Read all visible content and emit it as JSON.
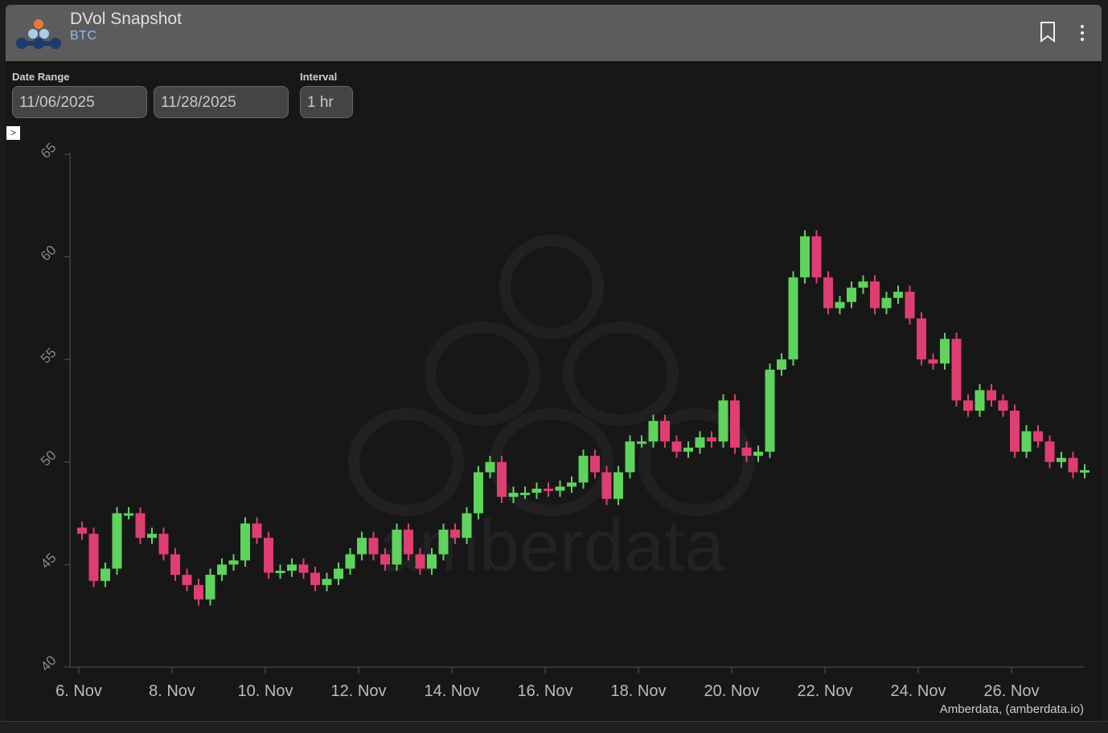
{
  "header": {
    "title": "DVol Snapshot",
    "subtitle": "BTC",
    "bookmark_icon": "bookmark-icon",
    "menu_icon": "kebab-menu-icon"
  },
  "controls": {
    "date_range_label": "Date Range",
    "start_date": "11/06/2025",
    "end_date": "11/28/2025",
    "interval_label": "Interval",
    "interval": "1 hr",
    "toggle_glyph": ">"
  },
  "colors": {
    "up": "#5ed35e",
    "down": "#df3e70",
    "header_bg": "#5c5c5c",
    "subtitle": "#8fb8ef"
  },
  "chart_data": {
    "type": "candlestick",
    "title": "",
    "xlabel": "",
    "ylabel": "",
    "ylim": [
      40,
      65
    ],
    "yticks": [
      40,
      45,
      50,
      55,
      60,
      65
    ],
    "xticks": [
      "6. Nov",
      "8. Nov",
      "10. Nov",
      "12. Nov",
      "14. Nov",
      "16. Nov",
      "18. Nov",
      "20. Nov",
      "22. Nov",
      "24. Nov",
      "26. Nov"
    ],
    "x_start": "2025-11-06 00:00",
    "x_step_hours": 6,
    "close": [
      46.5,
      44.2,
      44.8,
      47.5,
      47.5,
      46.3,
      46.5,
      45.5,
      44.5,
      44,
      43.3,
      44.5,
      45,
      45.2,
      47,
      46.3,
      44.6,
      44.7,
      45,
      44.6,
      44,
      44.3,
      44.8,
      45.5,
      46.3,
      45.5,
      45,
      46.7,
      45.5,
      44.8,
      45.5,
      46.7,
      46.3,
      47.5,
      49.5,
      50,
      48.3,
      48.5,
      48.5,
      48.7,
      48.6,
      48.8,
      49,
      50.3,
      49.5,
      48.2,
      49.5,
      51,
      51,
      52,
      51,
      50.5,
      50.7,
      51.2,
      51,
      53,
      50.7,
      50.3,
      50.5,
      54.5,
      55,
      59,
      61,
      59,
      57.5,
      57.8,
      58.5,
      58.8,
      57.5,
      58,
      58.3,
      57,
      55,
      54.8,
      56,
      53,
      52.5,
      53.5,
      53,
      52.5,
      50.5,
      51.5,
      51,
      50,
      50.2,
      49.5,
      49.6
    ],
    "grid": false,
    "legend": "none",
    "credit": "Amberdata, (amberdata.io)",
    "watermark": "amberdata"
  }
}
